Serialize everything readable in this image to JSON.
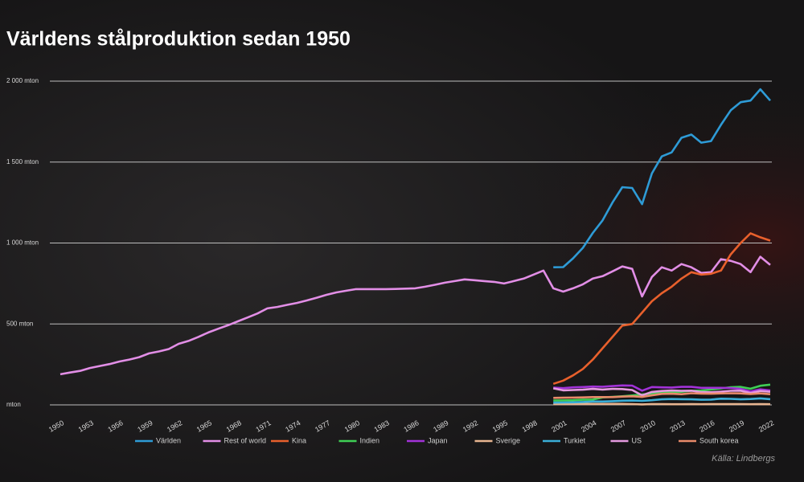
{
  "chart_data": {
    "type": "line",
    "title": "Världens stålproduktion sedan 1950",
    "source": "Källa: Lindbergs",
    "x": [
      1950,
      1951,
      1952,
      1953,
      1954,
      1955,
      1956,
      1957,
      1958,
      1959,
      1960,
      1961,
      1962,
      1963,
      1964,
      1965,
      1966,
      1967,
      1968,
      1969,
      1970,
      1971,
      1972,
      1973,
      1974,
      1975,
      1976,
      1977,
      1978,
      1979,
      1980,
      1981,
      1982,
      1983,
      1984,
      1985,
      1986,
      1987,
      1988,
      1989,
      1990,
      1991,
      1992,
      1993,
      1994,
      1995,
      1996,
      1997,
      1998,
      1999,
      2000,
      2001,
      2002,
      2003,
      2004,
      2005,
      2006,
      2007,
      2008,
      2009,
      2010,
      2011,
      2012,
      2013,
      2014,
      2015,
      2016,
      2017,
      2018,
      2019,
      2020,
      2021,
      2022
    ],
    "xlim": [
      1950,
      2022
    ],
    "xticks": [
      1950,
      1953,
      1956,
      1959,
      1962,
      1965,
      1968,
      1971,
      1974,
      1977,
      1980,
      1983,
      1986,
      1989,
      1992,
      1995,
      1998,
      2001,
      2004,
      2007,
      2010,
      2013,
      2016,
      2019,
      2022
    ],
    "ylim": [
      0,
      2000
    ],
    "yticks": [
      {
        "value": 0,
        "label": "mton"
      },
      {
        "value": 500,
        "label": "500 mton"
      },
      {
        "value": 1000,
        "label": "1 000 mton"
      },
      {
        "value": 1500,
        "label": "1 500 mton"
      },
      {
        "value": 2000,
        "label": "2 000 mton"
      }
    ],
    "grid": true,
    "legend": "bottom",
    "series": [
      {
        "name": "Världen",
        "color": "#2e9bd6",
        "values": [
          null,
          null,
          null,
          null,
          null,
          null,
          null,
          null,
          null,
          null,
          null,
          null,
          null,
          null,
          null,
          null,
          null,
          null,
          null,
          null,
          null,
          null,
          null,
          null,
          null,
          null,
          null,
          null,
          null,
          null,
          null,
          null,
          null,
          null,
          null,
          null,
          null,
          null,
          null,
          null,
          null,
          null,
          null,
          null,
          null,
          null,
          null,
          null,
          null,
          null,
          850,
          851,
          905,
          970,
          1062,
          1140,
          1250,
          1345,
          1340,
          1240,
          1430,
          1535,
          1560,
          1650,
          1670,
          1620,
          1630,
          1730,
          1820,
          1870,
          1880,
          1950,
          1880
        ]
      },
      {
        "name": "Rest of world",
        "color": "#e28ee6",
        "values": [
          189,
          200,
          210,
          228,
          240,
          252,
          268,
          280,
          295,
          318,
          330,
          345,
          377,
          395,
          420,
          447,
          470,
          492,
          516,
          540,
          565,
          596,
          605,
          618,
          630,
          645,
          662,
          680,
          695,
          705,
          715,
          715,
          715,
          715,
          716,
          718,
          720,
          730,
          742,
          755,
          765,
          775,
          770,
          765,
          760,
          750,
          765,
          780,
          805,
          830,
          720,
          700,
          720,
          745,
          780,
          795,
          825,
          855,
          840,
          670,
          790,
          850,
          830,
          870,
          850,
          815,
          820,
          900,
          890,
          870,
          820,
          915,
          865
        ]
      },
      {
        "name": "Kina",
        "color": "#e8602c",
        "values": [
          null,
          null,
          null,
          null,
          null,
          null,
          null,
          null,
          null,
          null,
          null,
          null,
          null,
          null,
          null,
          null,
          null,
          null,
          null,
          null,
          null,
          null,
          null,
          null,
          null,
          null,
          null,
          null,
          null,
          null,
          null,
          null,
          null,
          null,
          null,
          null,
          null,
          null,
          null,
          null,
          null,
          null,
          null,
          null,
          null,
          null,
          null,
          null,
          null,
          null,
          130,
          150,
          182,
          222,
          280,
          350,
          420,
          490,
          500,
          570,
          640,
          690,
          730,
          780,
          820,
          805,
          810,
          830,
          930,
          1000,
          1060,
          1035,
          1015
        ]
      },
      {
        "name": "Indien",
        "color": "#3fcf55",
        "values": [
          null,
          null,
          null,
          null,
          null,
          null,
          null,
          null,
          null,
          null,
          null,
          null,
          null,
          null,
          null,
          null,
          null,
          null,
          null,
          null,
          null,
          null,
          null,
          null,
          null,
          null,
          null,
          null,
          null,
          null,
          null,
          null,
          null,
          null,
          null,
          null,
          null,
          null,
          null,
          null,
          null,
          null,
          null,
          null,
          null,
          null,
          null,
          null,
          null,
          null,
          27,
          28,
          29,
          32,
          33,
          46,
          49,
          53,
          58,
          64,
          69,
          74,
          77,
          81,
          87,
          89,
          95,
          101,
          109,
          111,
          100,
          118,
          125
        ]
      },
      {
        "name": "Japan",
        "color": "#a232d8",
        "values": [
          null,
          null,
          null,
          null,
          null,
          null,
          null,
          null,
          null,
          null,
          null,
          null,
          null,
          null,
          null,
          null,
          null,
          null,
          null,
          null,
          null,
          null,
          null,
          null,
          null,
          null,
          null,
          null,
          null,
          null,
          null,
          null,
          null,
          null,
          null,
          null,
          null,
          null,
          null,
          null,
          null,
          null,
          null,
          null,
          null,
          null,
          null,
          null,
          null,
          null,
          106,
          103,
          108,
          110,
          113,
          112,
          116,
          120,
          119,
          88,
          110,
          108,
          107,
          111,
          111,
          105,
          105,
          105,
          104,
          99,
          83,
          96,
          89
        ]
      },
      {
        "name": "Sverige",
        "color": "#e8b590",
        "values": [
          null,
          null,
          null,
          null,
          null,
          null,
          null,
          null,
          null,
          null,
          null,
          null,
          null,
          null,
          null,
          null,
          null,
          null,
          null,
          null,
          null,
          null,
          null,
          null,
          null,
          null,
          null,
          null,
          null,
          null,
          null,
          null,
          null,
          null,
          null,
          null,
          null,
          null,
          null,
          null,
          null,
          null,
          null,
          null,
          null,
          null,
          null,
          null,
          null,
          null,
          5,
          5,
          6,
          6,
          6,
          6,
          6,
          6,
          5,
          3,
          5,
          5,
          4,
          4,
          5,
          4,
          5,
          5,
          5,
          5,
          4,
          5,
          4
        ]
      },
      {
        "name": "Turkiet",
        "color": "#3aaed8",
        "values": [
          null,
          null,
          null,
          null,
          null,
          null,
          null,
          null,
          null,
          null,
          null,
          null,
          null,
          null,
          null,
          null,
          null,
          null,
          null,
          null,
          null,
          null,
          null,
          null,
          null,
          null,
          null,
          null,
          null,
          null,
          null,
          null,
          null,
          null,
          null,
          null,
          null,
          null,
          null,
          null,
          null,
          null,
          null,
          null,
          null,
          null,
          null,
          null,
          null,
          null,
          14,
          15,
          16,
          18,
          21,
          21,
          23,
          26,
          27,
          25,
          29,
          34,
          36,
          35,
          34,
          32,
          33,
          38,
          37,
          34,
          36,
          40,
          35
        ]
      },
      {
        "name": "US",
        "color": "#e59ae0",
        "values": [
          null,
          null,
          null,
          null,
          null,
          null,
          null,
          null,
          null,
          null,
          null,
          null,
          null,
          null,
          null,
          null,
          null,
          null,
          null,
          null,
          null,
          null,
          null,
          null,
          null,
          null,
          null,
          null,
          null,
          null,
          null,
          null,
          null,
          null,
          null,
          null,
          null,
          null,
          null,
          null,
          null,
          null,
          null,
          null,
          null,
          null,
          null,
          null,
          null,
          null,
          102,
          90,
          92,
          94,
          99,
          95,
          99,
          98,
          92,
          59,
          80,
          86,
          89,
          87,
          88,
          79,
          78,
          82,
          87,
          88,
          73,
          86,
          81
        ]
      },
      {
        "name": "South korea",
        "color": "#e88a6a",
        "values": [
          null,
          null,
          null,
          null,
          null,
          null,
          null,
          null,
          null,
          null,
          null,
          null,
          null,
          null,
          null,
          null,
          null,
          null,
          null,
          null,
          null,
          null,
          null,
          null,
          null,
          null,
          null,
          null,
          null,
          null,
          null,
          null,
          null,
          null,
          null,
          null,
          null,
          null,
          null,
          null,
          null,
          null,
          null,
          null,
          null,
          null,
          null,
          null,
          null,
          null,
          43,
          44,
          45,
          46,
          48,
          48,
          48,
          51,
          53,
          49,
          59,
          68,
          69,
          66,
          72,
          70,
          69,
          71,
          72,
          71,
          67,
          71,
          66
        ]
      }
    ]
  }
}
